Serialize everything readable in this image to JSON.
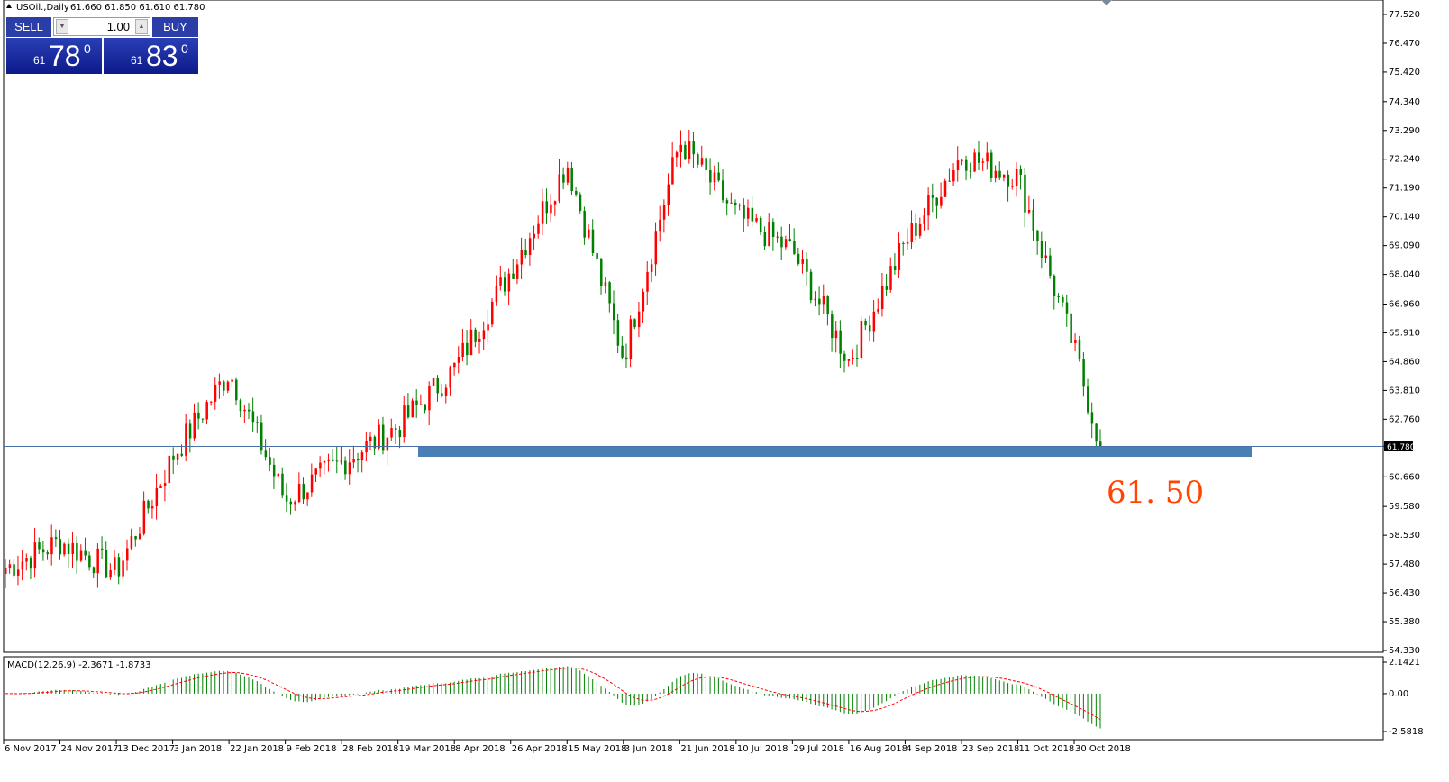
{
  "header": {
    "symbol": "USOil.,Daily",
    "ohlc": "61.660 61.850 61.610 61.780"
  },
  "trade_panel": {
    "sell_label": "SELL",
    "buy_label": "BUY",
    "lot_value": "1.00",
    "bid_prefix": "61",
    "bid_main": "78",
    "bid_sup": "0",
    "ask_prefix": "61",
    "ask_main": "83",
    "ask_sup": "0"
  },
  "annotation": {
    "support_label": "61. 50",
    "support_level": 61.5,
    "support_color": "#4a7fb5",
    "label_color": "#ff4500"
  },
  "macd_label": "MACD(12,26,9) -2.3671 -1.8733",
  "current_price_label": "61.780",
  "colors": {
    "up": "#ff0000",
    "down": "#008000",
    "signal": "#ff0000"
  },
  "chart_data": {
    "type": "candlestick",
    "symbol": "USOil.",
    "timeframe": "Daily",
    "ylim": [
      54.33,
      77.52
    ],
    "y_ticks": [
      "77.520",
      "76.470",
      "75.420",
      "74.340",
      "73.290",
      "72.240",
      "71.190",
      "70.140",
      "69.090",
      "68.040",
      "66.960",
      "65.910",
      "64.860",
      "63.810",
      "62.760",
      "61.780",
      "60.660",
      "59.580",
      "58.530",
      "57.480",
      "56.430",
      "55.380",
      "54.330"
    ],
    "x_ticks": [
      "6 Nov 2017",
      "24 Nov 2017",
      "13 Dec 2017",
      "3 Jan 2018",
      "22 Jan 2018",
      "9 Feb 2018",
      "28 Feb 2018",
      "19 Mar 2018",
      "8 Apr 2018",
      "26 Apr 2018",
      "15 May 2018",
      "3 Jun 2018",
      "21 Jun 2018",
      "10 Jul 2018",
      "29 Jul 2018",
      "16 Aug 2018",
      "4 Sep 2018",
      "23 Sep 2018",
      "11 Oct 2018",
      "30 Oct 2018"
    ],
    "close_path": [
      {
        "x": "6 Nov 2017",
        "y": 57.3
      },
      {
        "x": "24 Nov 2017",
        "y": 58.3
      },
      {
        "x": "13 Dec 2017",
        "y": 57.2
      },
      {
        "x": "3 Jan 2018",
        "y": 61.4
      },
      {
        "x": "22 Jan 2018",
        "y": 64.5
      },
      {
        "x": "9 Feb 2018",
        "y": 59.8
      },
      {
        "x": "28 Feb 2018",
        "y": 61.2
      },
      {
        "x": "19 Mar 2018",
        "y": 62.5
      },
      {
        "x": "8 Apr 2018",
        "y": 64.6
      },
      {
        "x": "26 Apr 2018",
        "y": 68.2
      },
      {
        "x": "15 May 2018",
        "y": 72.1
      },
      {
        "x": "3 Jun 2018",
        "y": 65.0
      },
      {
        "x": "21 Jun 2018",
        "y": 72.9
      },
      {
        "x": "10 Jul 2018",
        "y": 70.2
      },
      {
        "x": "29 Jul 2018",
        "y": 68.9
      },
      {
        "x": "16 Aug 2018",
        "y": 64.9
      },
      {
        "x": "4 Sep 2018",
        "y": 69.2
      },
      {
        "x": "23 Sep 2018",
        "y": 72.4
      },
      {
        "x": "11 Oct 2018",
        "y": 71.6
      },
      {
        "x": "30 Oct 2018",
        "y": 65.3
      },
      {
        "x": "8 Nov 2018",
        "y": 61.78
      }
    ],
    "macd": {
      "label": "MACD(12,26,9)",
      "ylim": [
        -2.5818,
        2.1421
      ],
      "y_ticks": [
        "2.1421",
        "0.00",
        "-2.5818"
      ],
      "main": -2.3671,
      "signal": -1.8733
    }
  }
}
